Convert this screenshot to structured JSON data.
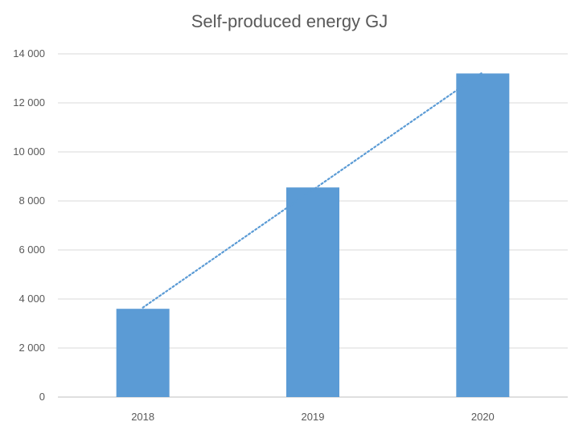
{
  "chart_data": {
    "type": "bar",
    "title": "Self-produced energy GJ",
    "xlabel": "",
    "ylabel": "",
    "categories": [
      "2018",
      "2019",
      "2020"
    ],
    "values": [
      3600,
      8550,
      13200
    ],
    "ylim": [
      0,
      14000
    ],
    "yticks": [
      0,
      2000,
      4000,
      6000,
      8000,
      10000,
      12000,
      14000
    ],
    "ytick_labels": [
      "0",
      "2 000",
      "4 000",
      "6 000",
      "8 000",
      "10 000",
      "12 000",
      "14 000"
    ],
    "grid": true,
    "legend": "none",
    "trendline": {
      "type": "linear",
      "style": "dotted"
    },
    "colors": {
      "bar": "#5b9bd5",
      "trendline": "#5b9bd5",
      "grid": "#d9d9d9",
      "axis": "#bfbfbf",
      "text": "#595959"
    }
  }
}
